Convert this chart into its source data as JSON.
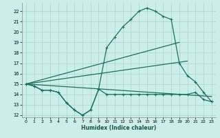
{
  "xlabel": "Humidex (Indice chaleur)",
  "bg_color": "#cceee8",
  "grid_color": "#aad8d0",
  "line_color": "#1a7060",
  "xlim": [
    -0.5,
    23.5
  ],
  "ylim": [
    11.8,
    22.8
  ],
  "xticks": [
    0,
    1,
    2,
    3,
    4,
    5,
    6,
    7,
    8,
    9,
    10,
    11,
    12,
    13,
    14,
    15,
    16,
    17,
    18,
    19,
    20,
    21,
    22,
    23
  ],
  "yticks": [
    12,
    13,
    14,
    15,
    16,
    17,
    18,
    19,
    20,
    21,
    22
  ],
  "series_main_x": [
    0,
    1,
    2,
    3,
    4,
    5,
    6,
    7,
    8,
    9,
    10,
    11,
    12,
    13,
    14,
    15,
    16,
    17,
    18,
    19,
    20,
    21,
    22,
    23
  ],
  "series_main_y": [
    15.0,
    14.8,
    14.4,
    14.4,
    14.2,
    13.2,
    12.5,
    12.0,
    12.5,
    14.5,
    18.5,
    19.5,
    20.5,
    21.2,
    22.0,
    22.3,
    22.0,
    21.5,
    21.2,
    17.0,
    15.8,
    15.2,
    14.2,
    13.3
  ],
  "series_min_x": [
    0,
    1,
    2,
    3,
    4,
    5,
    6,
    7,
    8,
    9,
    10,
    11,
    12,
    13,
    14,
    15,
    16,
    17,
    18,
    19,
    20,
    21,
    22,
    23
  ],
  "series_min_y": [
    15.0,
    14.8,
    14.4,
    14.4,
    14.2,
    13.2,
    12.5,
    12.0,
    12.5,
    14.5,
    14.0,
    14.0,
    14.0,
    14.0,
    14.0,
    14.0,
    14.0,
    14.0,
    14.0,
    14.0,
    14.0,
    14.2,
    13.5,
    13.3
  ],
  "trend1_x": [
    0,
    19
  ],
  "trend1_y": [
    15.0,
    19.0
  ],
  "trend2_x": [
    0,
    20
  ],
  "trend2_y": [
    15.0,
    17.2
  ],
  "trend3_x": [
    0,
    23
  ],
  "trend3_y": [
    15.0,
    13.8
  ]
}
